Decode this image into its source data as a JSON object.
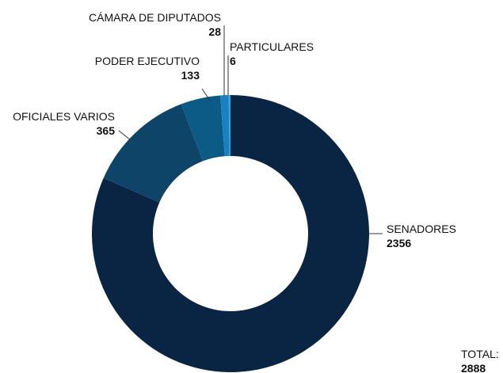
{
  "chart_data": {
    "type": "donut",
    "categories": [
      "SENADORES",
      "OFICIALES VARIOS",
      "PODER EJECUTIVO",
      "CÁMARA DE DIPUTADOS",
      "PARTICULARES"
    ],
    "values": [
      2356,
      365,
      133,
      28,
      6
    ],
    "colors": [
      "#0a2443",
      "#0d4468",
      "#0c5a86",
      "#1b80bf",
      "#2aa7df"
    ],
    "total": {
      "label": "TOTAL:",
      "value": 2888
    }
  }
}
